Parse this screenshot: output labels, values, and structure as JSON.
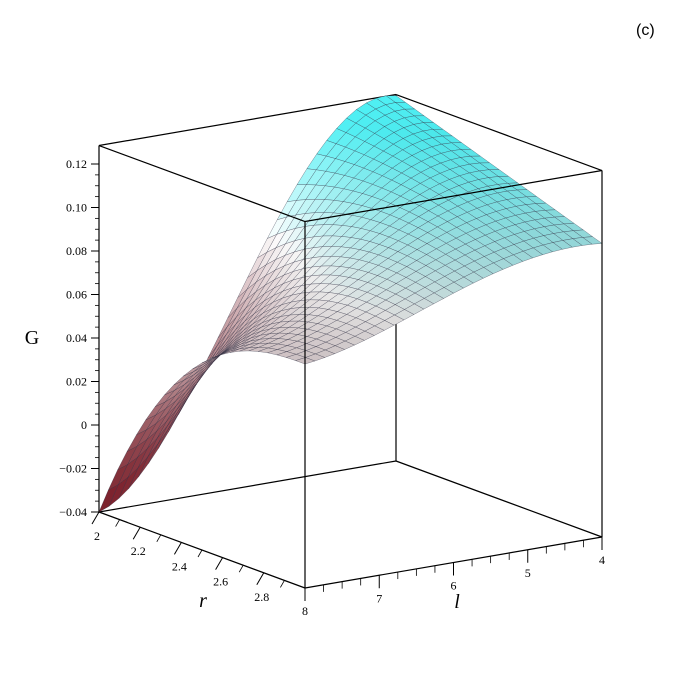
{
  "panel_label": "(c)",
  "chart_data": {
    "type": "surface3d",
    "zlabel": "G",
    "xlabel": "r",
    "ylabel": "l",
    "x_range": [
      2,
      3
    ],
    "y_range": [
      4,
      8
    ],
    "z_range": [
      -0.04,
      0.12
    ],
    "z_ticks": [
      "0.12",
      "0.10",
      "0.08",
      "0.06",
      "0.04",
      "0.02",
      "0",
      "−0.02",
      "−0.04"
    ],
    "z_tick_values": [
      0.12,
      0.1,
      0.08,
      0.06,
      0.04,
      0.02,
      0,
      -0.02,
      -0.04
    ],
    "r_ticks": [
      "2",
      "2.2",
      "2.4",
      "2.6",
      "2.8"
    ],
    "r_tick_values": [
      2,
      2.2,
      2.4,
      2.6,
      2.8
    ],
    "l_ticks": [
      "8",
      "7",
      "6",
      "5",
      "4"
    ],
    "l_tick_values": [
      8,
      7,
      6,
      5,
      4
    ],
    "surface_corners": [
      {
        "r": 2,
        "l": 8,
        "G": -0.04
      },
      {
        "r": 3,
        "l": 8,
        "G": 0.063
      },
      {
        "r": 2,
        "l": 4,
        "G": 0.128
      },
      {
        "r": 3,
        "l": 4,
        "G": 0.095
      }
    ],
    "colors": {
      "low": "#7a1f2a",
      "mid": "#ffffff",
      "high": "#4ff0f4"
    },
    "grid": false
  }
}
